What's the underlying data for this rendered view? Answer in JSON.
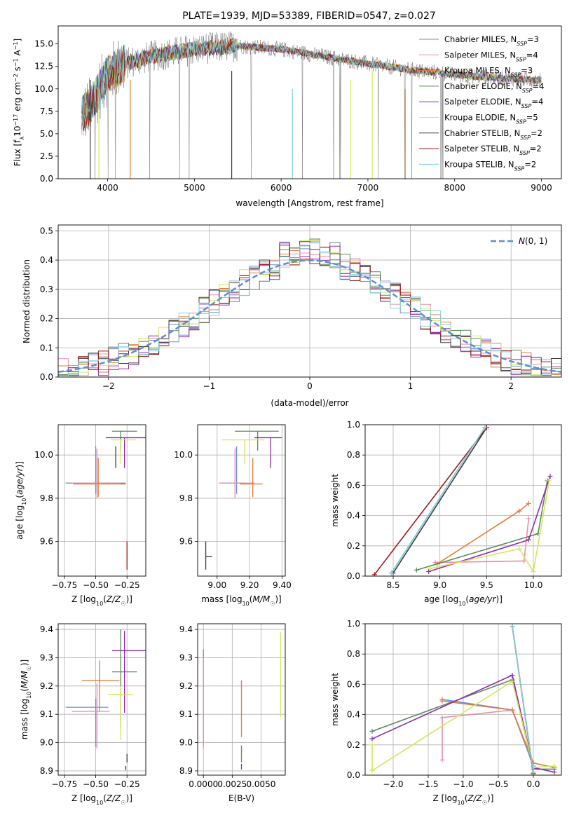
{
  "chart_data": [
    {
      "type": "line",
      "title": "PLATE=1939, MJD=53389, FIBERID=0547, z=0.027",
      "xlabel": "wavelength [Angstrom, rest frame]",
      "ylabel": "Flux [f_λ10^-17 erg cm^-2 s^-1 A^-1]",
      "xlim": [
        3430,
        9230
      ],
      "ylim": [
        0,
        17
      ],
      "xticks": [
        4000,
        5000,
        6000,
        7000,
        8000,
        9000
      ],
      "yticks": [
        0,
        2.5,
        5.0,
        7.5,
        10.0,
        12.5,
        15.0
      ],
      "legend_position": "top-right",
      "continuum_x": [
        3700,
        3800,
        3900,
        4000,
        4200,
        4500,
        5000,
        5500,
        6000,
        6500,
        7000,
        7500,
        8000,
        8500,
        8900
      ],
      "continuum_y": [
        7.0,
        8.0,
        9.8,
        11.6,
        12.8,
        13.6,
        14.4,
        14.8,
        14.4,
        13.6,
        12.8,
        12.1,
        11.6,
        11.2,
        11.0
      ],
      "series": [
        {
          "name": "Chabrier MILES, N_SSP=3"
        },
        {
          "name": "Salpeter MILES, N_SSP=4"
        },
        {
          "name": "Kroupa MILES, N_SSP=3"
        },
        {
          "name": "Chabrier ELODIE, N_SSP=4"
        },
        {
          "name": "Salpeter ELODIE, N_SSP=4"
        },
        {
          "name": "Kroupa ELODIE, N_SSP=5"
        },
        {
          "name": "Chabrier STELIB, N_SSP=2"
        },
        {
          "name": "Salpeter STELIB, N_SSP=2"
        },
        {
          "name": "Kroupa STELIB, N_SSP=2"
        }
      ]
    },
    {
      "type": "line",
      "xlabel": "(data-model)/error",
      "ylabel": "Normed distribution",
      "xlim": [
        -2.5,
        2.5
      ],
      "ylim": [
        0,
        0.52
      ],
      "xticks": [
        -2,
        -1,
        0,
        1,
        2
      ],
      "yticks": [
        0.0,
        0.1,
        0.2,
        0.3,
        0.4,
        0.5
      ],
      "legend": "N(0,1)",
      "gaussian": {
        "mean": 0,
        "sigma": 1
      }
    },
    {
      "type": "scatter",
      "xlabel": "Z [log10(Z/Z☉)]",
      "ylabel": "age  [log10(age/yr)]",
      "xlim": [
        -0.8,
        -0.1
      ],
      "ylim": [
        9.44,
        10.14
      ],
      "xticks": [
        -0.75,
        -0.5,
        -0.25
      ],
      "yticks": [
        9.6,
        9.8,
        10.0
      ],
      "points": [
        {
          "x": -0.5,
          "y": 9.87,
          "xerr": [
            0.24,
            0.24
          ],
          "yerr": [
            0.05,
            0.17
          ]
        },
        {
          "x": -0.49,
          "y": 9.87,
          "xerr": [
            0.2,
            0.18
          ],
          "yerr": [
            0.07,
            0.16
          ]
        },
        {
          "x": -0.48,
          "y": 9.866,
          "xerr": [
            0.2,
            0.22
          ],
          "yerr": [
            0.06,
            0.12
          ]
        },
        {
          "x": -0.3,
          "y": 10.11,
          "xerr": [
            0.07,
            0.13
          ],
          "yerr": [
            0.09,
            0.0
          ]
        },
        {
          "x": -0.27,
          "y": 10.08,
          "xerr": [
            0.15,
            0.19
          ],
          "yerr": [
            0.14,
            0.0
          ]
        },
        {
          "x": -0.3,
          "y": 10.07,
          "xerr": [
            0.08,
            0.12
          ],
          "yerr": [
            0.11,
            0.0
          ]
        },
        {
          "x": -0.34,
          "y": 10.04,
          "xerr": [
            0.0,
            0.0
          ],
          "yerr": [
            0.1,
            0.0
          ]
        },
        {
          "x": -0.25,
          "y": 9.53,
          "xerr": [
            0.0,
            0.0
          ],
          "yerr": [
            0.06,
            0.07
          ]
        }
      ]
    },
    {
      "type": "scatter",
      "xlabel": "mass [log10(M/M☉)]",
      "ylabel": "",
      "xlim": [
        8.88,
        9.42
      ],
      "ylim": [
        9.44,
        10.14
      ],
      "xticks": [
        9.0,
        9.2,
        9.4
      ],
      "yticks": [
        9.6,
        9.8,
        10.0
      ],
      "points": [
        {
          "x": 9.12,
          "y": 9.87,
          "xerr": [
            0.1,
            0.05
          ],
          "yerr": [
            0.05,
            0.17
          ]
        },
        {
          "x": 9.11,
          "y": 9.87,
          "xerr": [
            0.1,
            0.12
          ],
          "yerr": [
            0.07,
            0.16
          ]
        },
        {
          "x": 9.22,
          "y": 9.866,
          "xerr": [
            0.08,
            0.06
          ],
          "yerr": [
            0.06,
            0.12
          ]
        },
        {
          "x": 9.25,
          "y": 10.11,
          "xerr": [
            0.14,
            0.13
          ],
          "yerr": [
            0.09,
            0.0
          ]
        },
        {
          "x": 9.33,
          "y": 10.08,
          "xerr": [
            0.1,
            0.07
          ],
          "yerr": [
            0.14,
            0.0
          ]
        },
        {
          "x": 9.17,
          "y": 10.07,
          "xerr": [
            0.14,
            0.12
          ],
          "yerr": [
            0.11,
            0.0
          ]
        },
        {
          "x": 8.93,
          "y": 9.53,
          "xerr": [
            0.0,
            0.04
          ],
          "yerr": [
            0.06,
            0.07
          ]
        }
      ]
    },
    {
      "type": "line",
      "xlabel": "age  [log10(age/yr)]",
      "ylabel": "mass weight",
      "xlim": [
        8.2,
        10.3
      ],
      "ylim": [
        0,
        1.0
      ],
      "xticks": [
        8.5,
        9.0,
        9.5,
        10.0
      ],
      "yticks": [
        0.0,
        0.2,
        0.4,
        0.6,
        0.8,
        1.0
      ],
      "series": [
        {
          "x": [
            8.48,
            9.48
          ],
          "y": [
            0.02,
            0.98
          ]
        },
        {
          "x": [
            8.95,
            9.9,
            9.95
          ],
          "y": [
            0.09,
            0.1,
            0.38
          ]
        },
        {
          "x": [
            8.97,
            9.85,
            9.95
          ],
          "y": [
            0.08,
            0.43,
            0.48
          ]
        },
        {
          "x": [
            8.75,
            10.05,
            10.15
          ],
          "y": [
            0.04,
            0.28,
            0.63
          ]
        },
        {
          "x": [
            8.88,
            9.95,
            10.18
          ],
          "y": [
            0.03,
            0.24,
            0.66
          ]
        },
        {
          "x": [
            8.9,
            9.85,
            10.0,
            10.17
          ],
          "y": [
            0.05,
            0.18,
            0.03,
            0.63
          ]
        },
        {
          "x": [
            8.5,
            9.5
          ],
          "y": [
            0.02,
            0.98
          ]
        },
        {
          "x": [
            8.3,
            9.5
          ],
          "y": [
            0.01,
            0.98
          ]
        },
        {
          "x": [
            8.48,
            9.48
          ],
          "y": [
            0.02,
            0.98
          ]
        }
      ]
    },
    {
      "type": "scatter",
      "xlabel": "Z [log10(Z/Z☉)]",
      "ylabel": "mass [log10(M/M☉)]",
      "xlim": [
        -0.8,
        -0.1
      ],
      "ylim": [
        8.885,
        9.42
      ],
      "xticks": [
        -0.75,
        -0.5,
        -0.25
      ],
      "yticks": [
        8.9,
        9.0,
        9.1,
        9.2,
        9.3,
        9.4
      ],
      "points": [
        {
          "x": -0.5,
          "y": 9.125,
          "xerr": [
            0.24,
            0.1
          ],
          "yerr": [
            0.14,
            0.03
          ]
        },
        {
          "x": -0.49,
          "y": 9.11,
          "xerr": [
            0.2,
            0.1
          ],
          "yerr": [
            0.13,
            0.1
          ]
        },
        {
          "x": -0.47,
          "y": 9.22,
          "xerr": [
            0.14,
            0.16
          ],
          "yerr": [
            0.11,
            0.07
          ]
        },
        {
          "x": -0.3,
          "y": 9.25,
          "xerr": [
            0.07,
            0.13
          ],
          "yerr": [
            0.2,
            0.15
          ]
        },
        {
          "x": -0.27,
          "y": 9.325,
          "xerr": [
            0.1,
            0.19
          ],
          "yerr": [
            0.22,
            0.07
          ]
        },
        {
          "x": -0.3,
          "y": 9.17,
          "xerr": [
            0.1,
            0.1
          ],
          "yerr": [
            0.16,
            0.03
          ]
        },
        {
          "x": -0.25,
          "y": 8.93,
          "xerr": [
            0.0,
            0.0
          ],
          "yerr": [
            0.0,
            0.03
          ]
        },
        {
          "x": -0.26,
          "y": 8.91,
          "xerr": [
            0.0,
            0.0
          ],
          "yerr": [
            0.0,
            0.0
          ]
        }
      ]
    },
    {
      "type": "scatter",
      "xlabel": "E(B-V)",
      "ylabel": "",
      "xlim": [
        -0.0005,
        0.0071
      ],
      "ylim": [
        8.885,
        9.42
      ],
      "xticks": [
        0.0,
        0.0025,
        0.005
      ],
      "xticklabels": [
        "0.0000",
        "0.0025",
        "0.0050"
      ],
      "yticks": [
        8.9,
        9.0,
        9.1,
        9.2,
        9.3,
        9.4
      ],
      "points": [
        {
          "x": 0.0,
          "y": 9.15,
          "yerr": [
            0.16,
            0.18
          ]
        },
        {
          "x": 0.0,
          "y": 9.2,
          "yerr": [
            0.22,
            0.1
          ]
        },
        {
          "x": 0.0033,
          "y": 9.12,
          "yerr": [
            0.1,
            0.1
          ]
        },
        {
          "x": 0.0033,
          "y": 8.96,
          "yerr": [
            0.03,
            0.03
          ]
        },
        {
          "x": 0.0033,
          "y": 8.915,
          "yerr": [
            0.01,
            0.01
          ]
        },
        {
          "x": 0.0067,
          "y": 9.24,
          "yerr": [
            0.15,
            0.15
          ]
        }
      ]
    },
    {
      "type": "line",
      "xlabel": "Z [log10(Z/Z☉)]",
      "ylabel": "mass weight",
      "xlim": [
        -2.4,
        0.4
      ],
      "ylim": [
        0,
        1.0
      ],
      "xticks": [
        -2.0,
        -1.5,
        -1.0,
        -0.5,
        0.0
      ],
      "yticks": [
        0.0,
        0.2,
        0.4,
        0.6,
        0.8,
        1.0
      ],
      "series": [
        {
          "x": [
            -1.3,
            -0.3,
            0.0
          ],
          "y": [
            0.5,
            0.43,
            0.06
          ]
        },
        {
          "x": [
            -1.3,
            -1.3,
            -0.3,
            0.0
          ],
          "y": [
            0.1,
            0.38,
            0.43,
            0.08
          ]
        },
        {
          "x": [
            -1.3,
            -0.3,
            0.0,
            0.3
          ],
          "y": [
            0.49,
            0.43,
            0.08,
            0.05
          ]
        },
        {
          "x": [
            -2.3,
            -0.3,
            0.0,
            0.3
          ],
          "y": [
            0.29,
            0.63,
            0.04,
            0.04
          ]
        },
        {
          "x": [
            -2.3,
            -0.3,
            0.0,
            0.3
          ],
          "y": [
            0.24,
            0.66,
            0.05,
            0.02
          ]
        },
        {
          "x": [
            -2.3,
            -2.3,
            -0.3,
            0.0,
            0.3
          ],
          "y": [
            0.2,
            0.03,
            0.62,
            0.05,
            0.06
          ]
        },
        {
          "x": [
            -0.3,
            0.0
          ],
          "y": [
            0.98,
            0.02
          ]
        },
        {
          "x": [
            -0.3,
            0.0
          ],
          "y": [
            0.98,
            0.01
          ]
        },
        {
          "x": [
            -0.3,
            0.0
          ],
          "y": [
            0.98,
            0.02
          ]
        }
      ]
    }
  ],
  "colors": {
    "series": [
      "#6b8fd6",
      "#e88db0",
      "#e37b3a",
      "#5a8a5a",
      "#8e2bb0",
      "#d2e85a",
      "#3c3c3c",
      "#a01818",
      "#7ed3dc"
    ],
    "grid": "#b0b0b0",
    "gaussian": "#5b8fd6",
    "raw_data": "#7a7a7a"
  }
}
